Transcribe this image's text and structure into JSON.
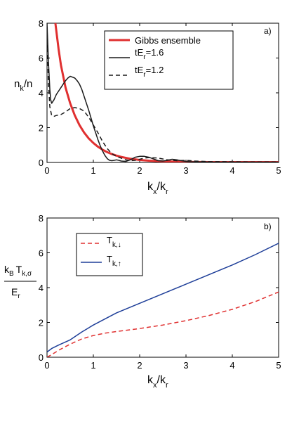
{
  "chart_data": [
    {
      "type": "line",
      "panel_label": "a)",
      "ylabel": {
        "main": "n",
        "sub": "k",
        "rest": "/n"
      },
      "xlabel": {
        "main": "k",
        "sub1": "x",
        "mid": "/k",
        "sub2": "r"
      },
      "xlim": [
        0,
        5
      ],
      "ylim": [
        0,
        8
      ],
      "xticks": [
        0,
        1,
        2,
        3,
        4,
        5
      ],
      "yticks": [
        0,
        2,
        4,
        6,
        8
      ],
      "grid": false,
      "legend_position": "top-right",
      "series": [
        {
          "label_parts": [
            "Gibbs ensemble"
          ],
          "color": "#e03030",
          "dash": "solid",
          "x": [
            0.18,
            0.25,
            0.3,
            0.4,
            0.5,
            0.6,
            0.7,
            0.8,
            0.9,
            1.0,
            1.1,
            1.2,
            1.3,
            1.4,
            1.5,
            1.6,
            1.8,
            2.0,
            2.2,
            2.5,
            3.0,
            3.5,
            4.0,
            4.5,
            5.0
          ],
          "y": [
            8.0,
            6.5,
            5.6,
            4.3,
            3.4,
            2.7,
            2.15,
            1.72,
            1.38,
            1.12,
            0.9,
            0.73,
            0.59,
            0.48,
            0.39,
            0.32,
            0.21,
            0.14,
            0.1,
            0.06,
            0.03,
            0.02,
            0.02,
            0.02,
            0.02
          ]
        },
        {
          "label_parts": [
            "tE",
            "r",
            "=1.6"
          ],
          "color": "#1a1a1a",
          "dash": "solid",
          "x": [
            0.0,
            0.03,
            0.06,
            0.08,
            0.1,
            0.15,
            0.2,
            0.25,
            0.3,
            0.35,
            0.4,
            0.45,
            0.5,
            0.55,
            0.6,
            0.65,
            0.7,
            0.75,
            0.8,
            0.85,
            0.9,
            0.95,
            1.0,
            1.05,
            1.1,
            1.15,
            1.2,
            1.25,
            1.3,
            1.35,
            1.4,
            1.45,
            1.5,
            1.55,
            1.6,
            1.7,
            1.8,
            1.9,
            2.0,
            2.1,
            2.2,
            2.3,
            2.4,
            2.5,
            2.6,
            2.7,
            2.8,
            2.9,
            3.0,
            3.1,
            3.2,
            3.4,
            3.6,
            3.8,
            4.0,
            4.5,
            5.0
          ],
          "y": [
            8.0,
            5.8,
            4.2,
            3.6,
            3.4,
            3.6,
            3.9,
            4.1,
            4.3,
            4.5,
            4.7,
            4.85,
            4.95,
            4.9,
            4.85,
            4.7,
            4.5,
            4.2,
            3.8,
            3.4,
            3.0,
            2.55,
            2.1,
            1.7,
            1.3,
            0.95,
            0.65,
            0.4,
            0.22,
            0.12,
            0.1,
            0.12,
            0.15,
            0.12,
            0.08,
            0.06,
            0.15,
            0.3,
            0.35,
            0.35,
            0.3,
            0.2,
            0.1,
            0.08,
            0.12,
            0.18,
            0.15,
            0.1,
            0.06,
            0.04,
            0.03,
            0.03,
            0.02,
            0.02,
            0.02,
            0.02,
            0.02
          ]
        },
        {
          "label_parts": [
            "tE",
            "r",
            "=1.2"
          ],
          "color": "#1a1a1a",
          "dash": "dashed",
          "x": [
            0.0,
            0.03,
            0.06,
            0.1,
            0.15,
            0.2,
            0.3,
            0.4,
            0.5,
            0.6,
            0.7,
            0.8,
            0.9,
            1.0,
            1.1,
            1.2,
            1.3,
            1.4,
            1.5,
            1.6,
            1.7,
            1.8,
            1.9,
            2.0,
            2.1,
            2.2,
            2.4,
            2.6,
            2.8,
            3.0,
            3.2,
            3.5,
            4.0,
            4.5,
            5.0
          ],
          "y": [
            7.8,
            4.6,
            3.2,
            2.7,
            2.65,
            2.7,
            2.75,
            2.9,
            3.1,
            3.15,
            3.1,
            2.95,
            2.6,
            2.15,
            1.7,
            1.2,
            0.8,
            0.5,
            0.35,
            0.25,
            0.15,
            0.1,
            0.12,
            0.18,
            0.25,
            0.28,
            0.25,
            0.15,
            0.1,
            0.12,
            0.08,
            0.05,
            0.04,
            0.03,
            0.03
          ]
        }
      ]
    },
    {
      "type": "line",
      "panel_label": "b)",
      "ylabel": {
        "num_parts": [
          "k",
          "B",
          "T",
          "k,σ"
        ],
        "den_parts": [
          "E",
          "r"
        ]
      },
      "xlabel": {
        "main": "k",
        "sub1": "x",
        "mid": "/k",
        "sub2": "r"
      },
      "xlim": [
        0,
        5
      ],
      "ylim": [
        0,
        8
      ],
      "xticks": [
        0,
        1,
        2,
        3,
        4,
        5
      ],
      "yticks": [
        0,
        2,
        4,
        6,
        8
      ],
      "grid": false,
      "legend_position": "top-left",
      "series": [
        {
          "label_parts": [
            "T",
            "k,↓"
          ],
          "color": "#e03030",
          "dash": "dashed",
          "x": [
            0.0,
            0.1,
            0.25,
            0.5,
            0.75,
            1.0,
            1.25,
            1.5,
            2.0,
            2.5,
            3.0,
            3.5,
            4.0,
            4.5,
            5.0
          ],
          "y": [
            0.0,
            0.15,
            0.4,
            0.75,
            1.05,
            1.25,
            1.38,
            1.48,
            1.65,
            1.85,
            2.1,
            2.4,
            2.75,
            3.2,
            3.75
          ]
        },
        {
          "label_parts": [
            "T",
            "k,↑"
          ],
          "color": "#1f3f99",
          "dash": "solid",
          "x": [
            0.0,
            0.1,
            0.25,
            0.5,
            0.75,
            1.0,
            1.5,
            2.0,
            2.5,
            3.0,
            3.5,
            4.0,
            4.5,
            5.0
          ],
          "y": [
            0.3,
            0.5,
            0.7,
            1.0,
            1.45,
            1.85,
            2.55,
            3.1,
            3.65,
            4.2,
            4.75,
            5.3,
            5.9,
            6.55
          ]
        }
      ]
    }
  ]
}
